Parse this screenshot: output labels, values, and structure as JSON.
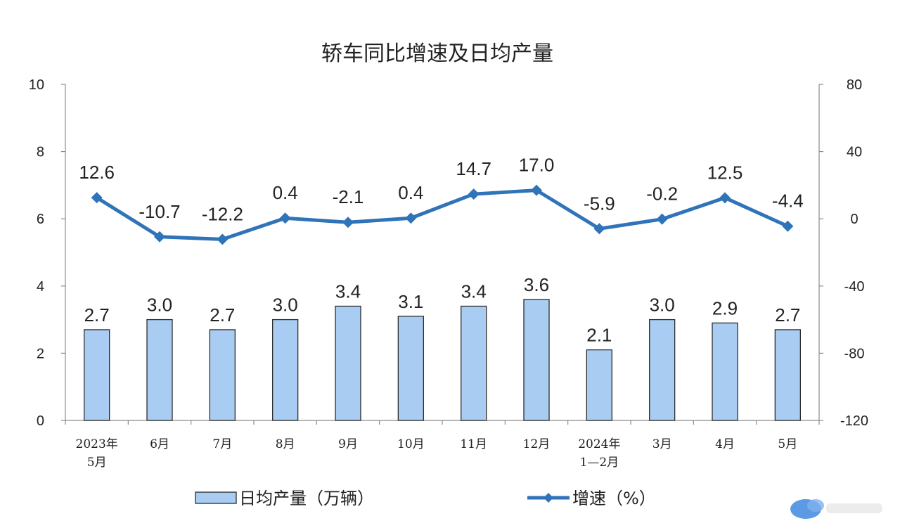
{
  "colors": {
    "bar_fill": "#a9cdf2",
    "bar_stroke": "#2b2b2b",
    "line": "#2f73b8",
    "watermark": "#4a8fe0"
  },
  "chart_data": {
    "type": "bar",
    "title": "轿车同比增速及日均产量",
    "categories": [
      [
        "2023年",
        "5月"
      ],
      [
        "6月"
      ],
      [
        "7月"
      ],
      [
        "8月"
      ],
      [
        "9月"
      ],
      [
        "10月"
      ],
      [
        "11月"
      ],
      [
        "12月"
      ],
      [
        "2024年",
        "1—2月"
      ],
      [
        "3月"
      ],
      [
        "4月"
      ],
      [
        "5月"
      ]
    ],
    "series": [
      {
        "name": "日均产量（万辆）",
        "type": "bar",
        "axis": "left",
        "values": [
          2.7,
          3.0,
          2.7,
          3.0,
          3.4,
          3.1,
          3.4,
          3.6,
          2.1,
          3.0,
          2.9,
          2.7
        ],
        "labels": [
          "2.7",
          "3.0",
          "2.7",
          "3.0",
          "3.4",
          "3.1",
          "3.4",
          "3.6",
          "2.1",
          "3.0",
          "2.9",
          "2.7"
        ]
      },
      {
        "name": "增速（%）",
        "type": "line",
        "axis": "right",
        "values": [
          12.6,
          -10.7,
          -12.2,
          0.4,
          -2.1,
          0.4,
          14.7,
          17.0,
          -5.9,
          -0.2,
          12.5,
          -4.4
        ],
        "labels": [
          "12.6",
          "-10.7",
          "-12.2",
          "0.4",
          "-2.1",
          "0.4",
          "14.7",
          "17.0",
          "-5.9",
          "-0.2",
          "12.5",
          "-4.4"
        ]
      }
    ],
    "y_left": {
      "min": 0,
      "max": 10,
      "ticks": [
        "0",
        "2",
        "4",
        "6",
        "8",
        "10"
      ]
    },
    "y_right": {
      "min": -120,
      "max": 80,
      "ticks": [
        "-120",
        "-80",
        "-40",
        "0",
        "40",
        "80"
      ]
    },
    "grid": false,
    "legend": {
      "position": "bottom",
      "bar_label": "日均产量（万辆）",
      "line_label": "增速（%）"
    }
  }
}
